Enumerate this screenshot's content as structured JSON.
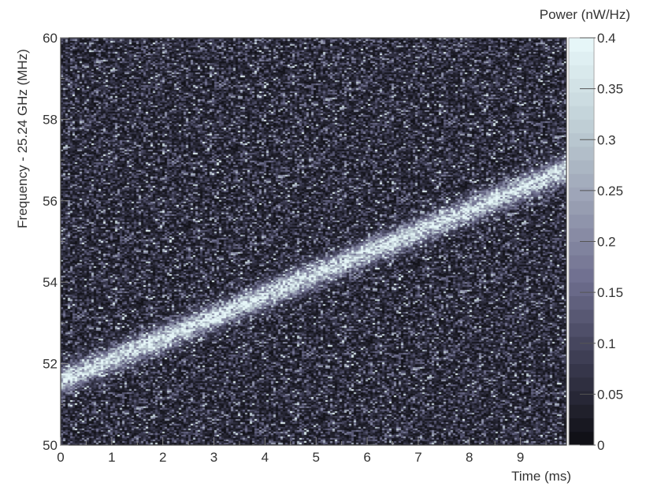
{
  "chart_data": {
    "type": "heatmap",
    "title": "",
    "xlabel": "Time (ms)",
    "ylabel": "Frequency - 25.24 GHz (MHz)",
    "colorbar_label": "Power (nW/Hz)",
    "xlim": [
      0,
      9.9
    ],
    "ylim": [
      50,
      60
    ],
    "clim": [
      0,
      0.4
    ],
    "x_ticks": [
      0,
      1,
      2,
      3,
      4,
      5,
      6,
      7,
      8,
      9
    ],
    "y_ticks": [
      50,
      52,
      54,
      56,
      58,
      60
    ],
    "colorbar_ticks": [
      0,
      0.05,
      0.1,
      0.15,
      0.2,
      0.25,
      0.3,
      0.35,
      0.4
    ],
    "colormap": [
      "#111117",
      "#3c3c52",
      "#6e6e8e",
      "#9aa0b4",
      "#c0d0d6",
      "#e6f6f8"
    ],
    "background_level": 0.07,
    "signal": {
      "description_visible": "chirp track",
      "start": {
        "x": 0,
        "y": 51.6
      },
      "end": {
        "x": 9.9,
        "y": 56.8
      },
      "peak_power": 0.3
    },
    "grid": false
  }
}
